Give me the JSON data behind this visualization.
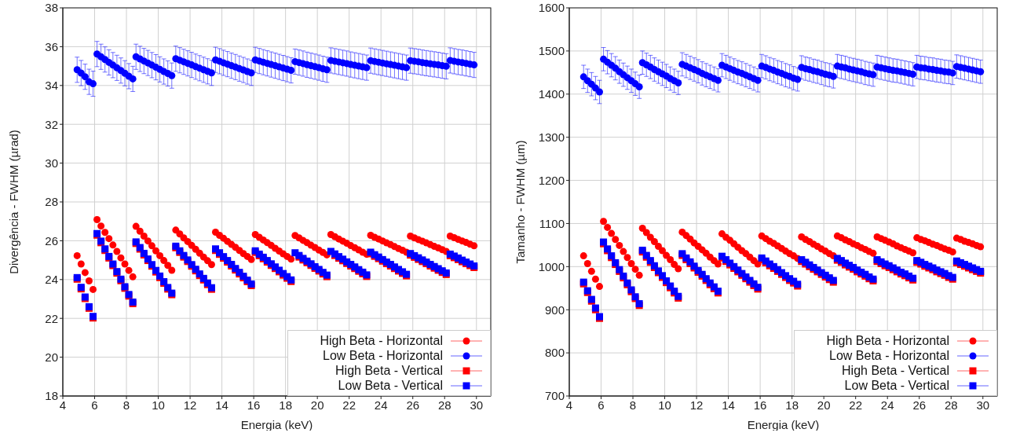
{
  "chart_data": [
    {
      "type": "scatter",
      "xlabel": "Energia (keV)",
      "ylabel": "Divergência - FWHM (µrad)",
      "xlim": [
        4,
        30.9
      ],
      "xticks": [
        4,
        6,
        8,
        10,
        12,
        14,
        16,
        18,
        20,
        22,
        24,
        26,
        28,
        30
      ],
      "ylim": [
        18,
        38
      ],
      "yticks": [
        18,
        20,
        22,
        24,
        26,
        28,
        30,
        32,
        34,
        36,
        38
      ],
      "grid": true,
      "legend": "bottom right",
      "x": [
        4.9,
        5.15,
        5.4,
        5.65,
        5.9,
        6.15,
        6.4,
        6.65,
        6.9,
        7.15,
        7.4,
        7.65,
        7.9,
        8.15,
        8.4,
        8.6,
        8.85,
        9.1,
        9.35,
        9.6,
        9.85,
        10.1,
        10.35,
        10.6,
        10.85,
        11.1,
        11.35,
        11.6,
        11.85,
        12.1,
        12.35,
        12.6,
        12.85,
        13.1,
        13.35,
        13.6,
        13.85,
        14.1,
        14.35,
        14.6,
        14.85,
        15.1,
        15.35,
        15.6,
        15.85,
        16.1,
        16.35,
        16.6,
        16.85,
        17.1,
        17.35,
        17.6,
        17.85,
        18.1,
        18.35,
        18.6,
        18.85,
        19.1,
        19.35,
        19.6,
        19.85,
        20.1,
        20.35,
        20.6,
        20.85,
        21.1,
        21.35,
        21.6,
        21.85,
        22.1,
        22.35,
        22.6,
        22.85,
        23.1,
        23.35,
        23.6,
        23.85,
        24.1,
        24.35,
        24.6,
        24.85,
        25.1,
        25.35,
        25.6,
        25.85,
        26.1,
        26.35,
        26.6,
        26.85,
        27.1,
        27.35,
        27.6,
        27.85,
        28.1,
        28.35,
        28.6,
        28.85,
        29.1,
        29.35,
        29.6,
        29.85
      ],
      "series": [
        {
          "name": "High Beta - Horizontal",
          "color": "#ff0000",
          "marker": "circle",
          "values": [
            25.23,
            24.8,
            24.36,
            23.93,
            23.49,
            27.09,
            26.76,
            26.43,
            26.11,
            25.78,
            25.45,
            25.12,
            24.8,
            24.47,
            24.14,
            26.74,
            26.49,
            26.24,
            25.99,
            25.74,
            25.48,
            25.23,
            24.98,
            24.73,
            24.48,
            26.55,
            26.35,
            26.15,
            25.96,
            25.76,
            25.56,
            25.36,
            25.16,
            24.97,
            24.77,
            26.44,
            26.28,
            26.13,
            25.97,
            25.81,
            25.66,
            25.5,
            25.34,
            25.19,
            25.03,
            26.32,
            26.18,
            26.04,
            25.9,
            25.76,
            25.61,
            25.47,
            25.33,
            25.19,
            25.05,
            26.27,
            26.15,
            26.02,
            25.9,
            25.77,
            25.65,
            25.52,
            25.4,
            25.27,
            26.32,
            26.21,
            26.09,
            25.98,
            25.87,
            25.75,
            25.64,
            25.53,
            25.41,
            25.3,
            26.28,
            26.18,
            26.09,
            25.99,
            25.89,
            25.8,
            25.7,
            25.6,
            25.51,
            25.41,
            26.24,
            26.15,
            26.06,
            25.98,
            25.89,
            25.8,
            25.71,
            25.63,
            25.54,
            25.45,
            26.24,
            26.16,
            26.07,
            25.99,
            25.91,
            25.82,
            25.74
          ]
        },
        {
          "name": "Low Beta - Horizontal",
          "color": "#0000ff",
          "marker": "circle",
          "values": [
            34.81,
            34.64,
            34.45,
            34.19,
            34.09,
            35.62,
            35.48,
            35.34,
            35.19,
            35.05,
            34.91,
            34.77,
            34.63,
            34.48,
            34.34,
            35.48,
            35.37,
            35.26,
            35.16,
            35.05,
            34.94,
            34.83,
            34.72,
            34.62,
            34.51,
            35.38,
            35.3,
            35.22,
            35.14,
            35.06,
            34.97,
            34.89,
            34.81,
            34.73,
            34.65,
            35.32,
            35.25,
            35.17,
            35.1,
            35.02,
            34.95,
            34.87,
            34.8,
            34.72,
            34.65,
            35.32,
            35.26,
            35.2,
            35.14,
            35.08,
            35.02,
            34.96,
            34.9,
            34.84,
            34.78,
            35.23,
            35.18,
            35.13,
            35.07,
            35.02,
            34.97,
            34.92,
            34.86,
            34.81,
            35.29,
            35.25,
            35.21,
            35.17,
            35.13,
            35.08,
            35.04,
            35.0,
            34.96,
            34.92,
            35.28,
            35.24,
            35.2,
            35.16,
            35.12,
            35.08,
            35.04,
            35.0,
            34.96,
            34.92,
            35.28,
            35.25,
            35.22,
            35.18,
            35.15,
            35.12,
            35.09,
            35.06,
            35.02,
            34.99,
            35.29,
            35.25,
            35.21,
            35.18,
            35.14,
            35.1,
            35.06
          ],
          "errors": [
            0.65,
            0.65,
            0.65,
            0.65,
            0.65,
            0.65,
            0.65,
            0.65,
            0.65,
            0.65,
            0.65,
            0.65,
            0.65,
            0.65,
            0.65,
            0.65,
            0.65,
            0.65,
            0.65,
            0.65,
            0.65,
            0.65,
            0.65,
            0.65,
            0.65,
            0.65,
            0.65,
            0.65,
            0.65,
            0.65,
            0.65,
            0.65,
            0.65,
            0.65,
            0.65,
            0.65,
            0.65,
            0.65,
            0.65,
            0.65,
            0.65,
            0.65,
            0.65,
            0.65,
            0.65,
            0.65,
            0.65,
            0.65,
            0.65,
            0.65,
            0.65,
            0.65,
            0.65,
            0.65,
            0.65,
            0.65,
            0.65,
            0.65,
            0.65,
            0.65,
            0.65,
            0.65,
            0.65,
            0.65,
            0.65,
            0.65,
            0.65,
            0.65,
            0.65,
            0.65,
            0.65,
            0.65,
            0.65,
            0.65,
            0.65,
            0.65,
            0.65,
            0.65,
            0.65,
            0.65,
            0.65,
            0.65,
            0.65,
            0.65,
            0.65,
            0.65,
            0.65,
            0.65,
            0.65,
            0.65,
            0.65,
            0.65,
            0.65,
            0.65,
            0.65,
            0.65,
            0.65,
            0.65,
            0.65,
            0.65,
            0.65
          ]
        },
        {
          "name": "High Beta - Vertical",
          "color": "#ff0000",
          "marker": "square",
          "values": [
            24.02,
            23.52,
            23.02,
            22.52,
            22.02,
            26.29,
            25.9,
            25.5,
            25.11,
            24.72,
            24.33,
            23.94,
            23.55,
            23.15,
            22.76,
            25.86,
            25.57,
            25.27,
            24.98,
            24.69,
            24.39,
            24.1,
            23.81,
            23.51,
            23.22,
            25.64,
            25.4,
            25.16,
            24.93,
            24.69,
            24.45,
            24.21,
            23.98,
            23.74,
            23.5,
            25.5,
            25.3,
            25.1,
            24.9,
            24.7,
            24.49,
            24.29,
            24.09,
            23.89,
            23.69,
            25.4,
            25.23,
            25.07,
            24.9,
            24.73,
            24.57,
            24.4,
            24.23,
            24.07,
            23.9,
            null,
            25.16,
            25.01,
            24.87,
            24.73,
            24.58,
            24.44,
            24.29,
            24.15,
            null,
            25.24,
            25.1,
            24.97,
            24.83,
            24.7,
            24.57,
            24.43,
            24.3,
            24.16,
            25.33,
            25.2,
            25.08,
            24.95,
            24.82,
            24.7,
            24.57,
            24.44,
            24.32,
            24.19,
            25.26,
            25.15,
            25.04,
            24.93,
            24.82,
            24.7,
            24.59,
            24.48,
            24.37,
            24.26,
            25.23,
            25.13,
            25.03,
            24.92,
            24.82,
            24.72,
            24.62
          ]
        },
        {
          "name": "Low Beta - Vertical",
          "color": "#0000ff",
          "marker": "square",
          "values": [
            24.1,
            23.6,
            23.1,
            22.6,
            22.1,
            26.37,
            25.98,
            25.58,
            25.19,
            24.8,
            24.41,
            24.02,
            23.63,
            23.23,
            22.84,
            25.94,
            25.65,
            25.35,
            25.06,
            24.77,
            24.47,
            24.18,
            23.89,
            23.59,
            23.3,
            25.72,
            25.48,
            25.24,
            25.01,
            24.77,
            24.53,
            24.29,
            24.06,
            23.82,
            23.58,
            25.58,
            25.38,
            25.18,
            24.98,
            24.78,
            24.57,
            24.37,
            24.17,
            23.97,
            23.77,
            25.48,
            25.31,
            25.15,
            24.98,
            24.81,
            24.65,
            24.48,
            24.31,
            24.15,
            23.98,
            25.38,
            25.24,
            25.09,
            24.95,
            24.81,
            24.66,
            24.52,
            24.37,
            24.23,
            25.45,
            25.32,
            25.18,
            25.05,
            24.91,
            24.78,
            24.65,
            24.51,
            24.38,
            24.24,
            25.41,
            25.28,
            25.16,
            25.03,
            24.9,
            24.78,
            24.65,
            24.52,
            24.4,
            24.27,
            25.34,
            25.23,
            25.12,
            25.01,
            24.9,
            24.78,
            24.67,
            24.56,
            24.45,
            24.34,
            25.31,
            25.21,
            25.11,
            25.0,
            24.9,
            24.8,
            24.7
          ]
        }
      ]
    },
    {
      "type": "scatter",
      "xlabel": "Energia (keV)",
      "ylabel": "Tamanho - FWHM (µm)",
      "xlim": [
        4,
        30.9
      ],
      "xticks": [
        4,
        6,
        8,
        10,
        12,
        14,
        16,
        18,
        20,
        22,
        24,
        26,
        28,
        30
      ],
      "ylim": [
        700,
        1600
      ],
      "yticks": [
        700,
        800,
        900,
        1000,
        1100,
        1200,
        1300,
        1400,
        1500,
        1600
      ],
      "grid": true,
      "legend": "bottom right",
      "x": [
        4.9,
        5.15,
        5.4,
        5.65,
        5.9,
        6.15,
        6.4,
        6.65,
        6.9,
        7.15,
        7.4,
        7.65,
        7.9,
        8.15,
        8.4,
        8.6,
        8.85,
        9.1,
        9.35,
        9.6,
        9.85,
        10.1,
        10.35,
        10.6,
        10.85,
        11.1,
        11.35,
        11.6,
        11.85,
        12.1,
        12.35,
        12.6,
        12.85,
        13.1,
        13.35,
        13.6,
        13.85,
        14.1,
        14.35,
        14.6,
        14.85,
        15.1,
        15.35,
        15.6,
        15.85,
        16.1,
        16.35,
        16.6,
        16.85,
        17.1,
        17.35,
        17.6,
        17.85,
        18.1,
        18.35,
        18.6,
        18.85,
        19.1,
        19.35,
        19.6,
        19.85,
        20.1,
        20.35,
        20.6,
        20.85,
        21.1,
        21.35,
        21.6,
        21.85,
        22.1,
        22.35,
        22.6,
        22.85,
        23.1,
        23.35,
        23.6,
        23.85,
        24.1,
        24.35,
        24.6,
        24.85,
        25.1,
        25.35,
        25.6,
        25.85,
        26.1,
        26.35,
        26.6,
        26.85,
        27.1,
        27.35,
        27.6,
        27.85,
        28.1,
        28.35,
        28.6,
        28.85,
        29.1,
        29.35,
        29.6,
        29.85
      ],
      "series": [
        {
          "name": "High Beta - Horizontal",
          "color": "#ff0000",
          "marker": "circle",
          "values": [
            1025,
            1007,
            989,
            971,
            954,
            1105,
            1091,
            1077,
            1063,
            1049,
            1035,
            1021,
            1007,
            994,
            980,
            1089,
            1079,
            1068,
            1058,
            1047,
            1037,
            1026,
            1016,
            1005,
            995,
            1080,
            1072,
            1064,
            1055,
            1047,
            1039,
            1031,
            1022,
            1014,
            1006,
            1076,
            1068,
            1061,
            1053,
            1045,
            1037,
            1030,
            1022,
            1014,
            1006,
            1071,
            1065,
            1059,
            1054,
            1048,
            1042,
            1036,
            1030,
            1025,
            1019,
            1069,
            1063,
            1058,
            1052,
            1047,
            1041,
            1036,
            1030,
            1025,
            1071,
            1067,
            1062,
            1058,
            1053,
            1049,
            1044,
            1040,
            1035,
            1031,
            1069,
            1065,
            1061,
            1057,
            1053,
            1048,
            1044,
            1040,
            1036,
            1032,
            1067,
            1063,
            1060,
            1056,
            1052,
            1049,
            1045,
            1041,
            1038,
            1034,
            1066,
            1063,
            1059,
            1056,
            1053,
            1049,
            1046
          ]
        },
        {
          "name": "Low Beta - Horizontal",
          "color": "#0000ff",
          "marker": "circle",
          "values": [
            1440,
            1431,
            1423,
            1414,
            1405,
            1481,
            1474,
            1467,
            1460,
            1452,
            1445,
            1438,
            1431,
            1424,
            1417,
            1473,
            1468,
            1463,
            1457,
            1452,
            1447,
            1442,
            1436,
            1431,
            1426,
            1469,
            1465,
            1461,
            1457,
            1453,
            1448,
            1444,
            1440,
            1436,
            1432,
            1467,
            1463,
            1459,
            1455,
            1451,
            1448,
            1444,
            1440,
            1436,
            1432,
            1465,
            1462,
            1458,
            1455,
            1451,
            1448,
            1444,
            1441,
            1437,
            1434,
            1462,
            1459,
            1457,
            1454,
            1452,
            1449,
            1446,
            1444,
            1441,
            1465,
            1463,
            1461,
            1458,
            1456,
            1454,
            1452,
            1449,
            1447,
            1445,
            1463,
            1461,
            1459,
            1457,
            1455,
            1454,
            1452,
            1450,
            1448,
            1446,
            1463,
            1461,
            1460,
            1458,
            1457,
            1455,
            1454,
            1452,
            1451,
            1449,
            1464,
            1462,
            1460,
            1458,
            1456,
            1454,
            1452
          ],
          "errors": [
            27,
            27,
            27,
            27,
            27,
            27,
            27,
            27,
            27,
            27,
            27,
            27,
            27,
            27,
            27,
            27,
            27,
            27,
            27,
            27,
            27,
            27,
            27,
            27,
            27,
            27,
            27,
            27,
            27,
            27,
            27,
            27,
            27,
            27,
            27,
            27,
            27,
            27,
            27,
            27,
            27,
            27,
            27,
            27,
            27,
            27,
            27,
            27,
            27,
            27,
            27,
            27,
            27,
            27,
            27,
            27,
            27,
            27,
            27,
            27,
            27,
            27,
            27,
            27,
            27,
            27,
            27,
            27,
            27,
            27,
            27,
            27,
            27,
            27,
            27,
            27,
            27,
            27,
            27,
            27,
            27,
            27,
            27,
            27,
            27,
            27,
            27,
            27,
            27,
            27,
            27,
            27,
            27,
            27,
            27,
            27,
            27,
            27,
            27,
            27,
            27
          ]
        },
        {
          "name": "High Beta - Vertical",
          "color": "#ff0000",
          "marker": "square",
          "values": [
            960,
            940,
            920,
            900,
            880,
            1053,
            1037,
            1021,
            1005,
            989,
            974,
            958,
            942,
            926,
            910,
            1034,
            1022,
            1010,
            998,
            986,
            975,
            963,
            951,
            939,
            927,
            1026,
            1016,
            1007,
            997,
            987,
            978,
            968,
            958,
            949,
            939,
            1020,
            1012,
            1004,
            996,
            988,
            980,
            972,
            964,
            956,
            948,
            1016,
            1009,
            1002,
            996,
            989,
            982,
            975,
            968,
            962,
            955,
            1012,
            1006,
            1000,
            994,
            988,
            982,
            976,
            970,
            964,
            1015,
            1010,
            1004,
            999,
            994,
            988,
            983,
            978,
            972,
            967,
            1012,
            1007,
            1002,
            998,
            993,
            988,
            983,
            979,
            974,
            969,
            1010,
            1006,
            1001,
            997,
            993,
            988,
            984,
            980,
            975,
            971,
            1009,
            1005,
            1001,
            997,
            993,
            989,
            985
          ]
        },
        {
          "name": "Low Beta - Vertical",
          "color": "#0000ff",
          "marker": "square",
          "values": [
            964,
            944,
            924,
            904,
            884,
            1057,
            1041,
            1025,
            1009,
            993,
            978,
            962,
            946,
            930,
            914,
            1038,
            1026,
            1014,
            1002,
            990,
            979,
            967,
            955,
            943,
            931,
            1030,
            1020,
            1011,
            1001,
            991,
            982,
            972,
            962,
            953,
            943,
            1024,
            1016,
            1008,
            1000,
            992,
            984,
            976,
            968,
            960,
            952,
            1020,
            1013,
            1006,
            1000,
            993,
            986,
            979,
            972,
            966,
            959,
            1016,
            1010,
            1004,
            998,
            992,
            986,
            980,
            974,
            968,
            1019,
            1014,
            1008,
            1003,
            998,
            992,
            987,
            982,
            976,
            971,
            1016,
            1011,
            1006,
            1002,
            997,
            992,
            987,
            983,
            978,
            973,
            1014,
            1010,
            1005,
            1001,
            997,
            992,
            988,
            984,
            979,
            975,
            1013,
            1009,
            1005,
            1001,
            997,
            993,
            989
          ]
        }
      ]
    }
  ]
}
